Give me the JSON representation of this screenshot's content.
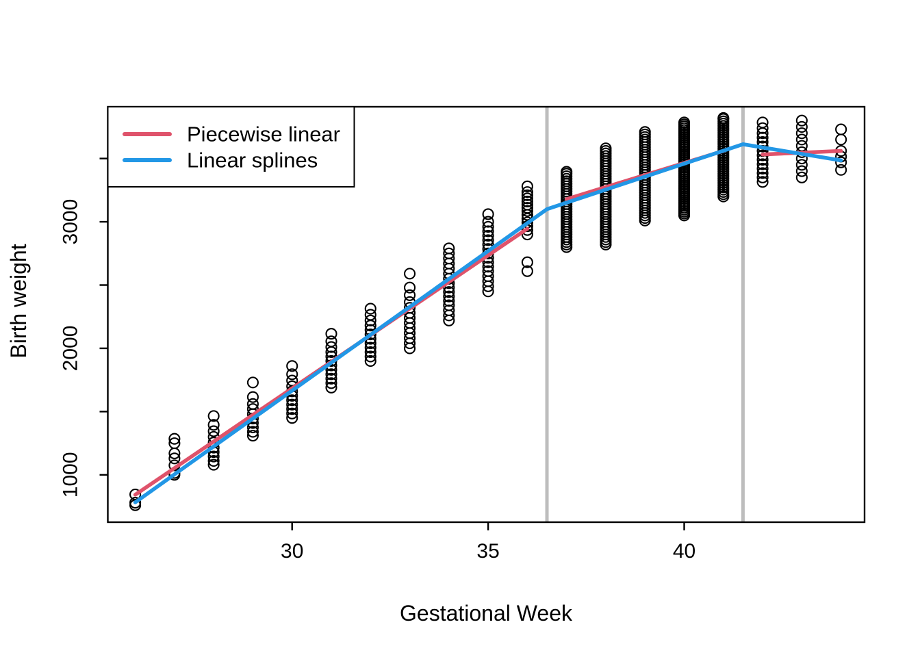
{
  "figure": {
    "background": "#ffffff",
    "border_color": "#000000",
    "text_color": "#000000"
  },
  "legend": {
    "position": "topleft",
    "items": [
      {
        "label": "Piecewise linear",
        "color": "#DF536B"
      },
      {
        "label": "Linear splines",
        "color": "#2297E6"
      }
    ]
  },
  "chart_data": {
    "type": "scatter",
    "title": "",
    "xlabel": "Gestational Week",
    "ylabel": "Birth weight",
    "xlim": [
      25.3,
      44.6
    ],
    "ylim": [
      626,
      3909
    ],
    "x_ticks": [
      30,
      35,
      40
    ],
    "y_ticks_labeled": [
      1000,
      2000,
      3000
    ],
    "y_ticks_minor": [
      1500,
      2500,
      3500
    ],
    "grid": false,
    "knot_lines_x": [
      36.5,
      41.5
    ],
    "knot_line_color": "#BDBDBD",
    "point_color": "#000000",
    "scatter": [
      {
        "week": 26,
        "values": [
          760,
          780,
          845
        ]
      },
      {
        "week": 27,
        "values": [
          1000,
          1015,
          1075,
          1130,
          1170,
          1250,
          1285
        ]
      },
      {
        "week": 28,
        "values": [
          1080,
          1110,
          1145,
          1180,
          1215,
          1255,
          1300,
          1345,
          1395,
          1465
        ]
      },
      {
        "week": 29,
        "values": [
          1310,
          1340,
          1375,
          1410,
          1445,
          1480,
          1520,
          1560,
          1615,
          1730
        ]
      },
      {
        "week": 30,
        "values": [
          1450,
          1485,
          1520,
          1555,
          1590,
          1625,
          1660,
          1700,
          1745,
          1795,
          1860
        ]
      },
      {
        "week": 31,
        "values": [
          1690,
          1725,
          1760,
          1795,
          1830,
          1865,
          1900,
          1935,
          1970,
          2010,
          2055,
          2115
        ]
      },
      {
        "week": 32,
        "values": [
          1900,
          1935,
          1970,
          2005,
          2040,
          2075,
          2110,
          2145,
          2180,
          2220,
          2265,
          2313
        ]
      },
      {
        "week": 33,
        "values": [
          2000,
          2040,
          2080,
          2120,
          2160,
          2200,
          2240,
          2280,
          2320,
          2365,
          2420,
          2480,
          2590
        ]
      },
      {
        "week": 34,
        "values": [
          2220,
          2260,
          2300,
          2340,
          2375,
          2410,
          2445,
          2480,
          2515,
          2550,
          2590,
          2630,
          2670,
          2710,
          2750,
          2790
        ]
      },
      {
        "week": 35,
        "values": [
          2450,
          2490,
          2530,
          2570,
          2610,
          2645,
          2680,
          2715,
          2750,
          2785,
          2820,
          2855,
          2890,
          2925,
          2960,
          3000,
          3060
        ]
      },
      {
        "week": 36,
        "values": [
          2610,
          2680,
          2900,
          2935,
          2965,
          2995,
          3025,
          3055,
          3085,
          3110,
          3135,
          3160,
          3185,
          3210,
          3235,
          3280
        ]
      },
      {
        "week": 37,
        "values": [
          2800,
          2820,
          2840,
          2860,
          2880,
          2900,
          2920,
          2940,
          2960,
          2980,
          3000,
          3020,
          3040,
          3060,
          3080,
          3100,
          3120,
          3140,
          3160,
          3180,
          3200,
          3220,
          3240,
          3260,
          3280,
          3300,
          3320,
          3340,
          3360,
          3380,
          3395
        ]
      },
      {
        "week": 38,
        "values": [
          2820,
          2840,
          2860,
          2880,
          2900,
          2920,
          2940,
          2960,
          2980,
          3000,
          3020,
          3040,
          3060,
          3080,
          3100,
          3120,
          3140,
          3160,
          3180,
          3200,
          3220,
          3240,
          3260,
          3280,
          3300,
          3320,
          3340,
          3360,
          3380,
          3400,
          3420,
          3440,
          3460,
          3480,
          3500,
          3520,
          3540,
          3560,
          3580
        ]
      },
      {
        "week": 39,
        "values": [
          3010,
          3030,
          3050,
          3070,
          3090,
          3110,
          3130,
          3150,
          3170,
          3190,
          3210,
          3230,
          3250,
          3270,
          3290,
          3310,
          3330,
          3350,
          3370,
          3390,
          3410,
          3430,
          3450,
          3470,
          3490,
          3510,
          3530,
          3550,
          3570,
          3590,
          3610,
          3630,
          3650,
          3670,
          3690,
          3710
        ]
      },
      {
        "week": 40,
        "values": [
          3050,
          3065,
          3080,
          3095,
          3110,
          3125,
          3140,
          3155,
          3170,
          3185,
          3200,
          3215,
          3230,
          3245,
          3260,
          3275,
          3290,
          3305,
          3320,
          3335,
          3350,
          3365,
          3380,
          3395,
          3410,
          3425,
          3440,
          3455,
          3470,
          3485,
          3500,
          3515,
          3530,
          3545,
          3560,
          3575,
          3590,
          3605,
          3620,
          3635,
          3650,
          3665,
          3680,
          3695,
          3710,
          3725,
          3740,
          3755,
          3770,
          3785
        ]
      },
      {
        "week": 41,
        "values": [
          3200,
          3218,
          3236,
          3254,
          3272,
          3290,
          3308,
          3326,
          3344,
          3362,
          3380,
          3398,
          3416,
          3434,
          3452,
          3470,
          3488,
          3506,
          3524,
          3542,
          3560,
          3578,
          3596,
          3614,
          3632,
          3650,
          3668,
          3686,
          3704,
          3722,
          3740,
          3758,
          3776,
          3794,
          3812,
          3820
        ]
      },
      {
        "week": 42,
        "values": [
          3315,
          3350,
          3385,
          3420,
          3455,
          3490,
          3525,
          3560,
          3595,
          3630,
          3665,
          3700,
          3740,
          3785
        ]
      },
      {
        "week": 43,
        "values": [
          3350,
          3400,
          3450,
          3500,
          3550,
          3600,
          3650,
          3700,
          3750,
          3800
        ]
      },
      {
        "week": 44,
        "values": [
          3410,
          3470,
          3515,
          3560,
          3650,
          3730
        ]
      }
    ],
    "series": [
      {
        "name": "Piecewise linear",
        "type": "segments",
        "color": "#DF536B",
        "segments": [
          {
            "x": [
              26,
              36
            ],
            "y": [
              843,
              2945
            ]
          },
          {
            "x": [
              37,
              41
            ],
            "y": [
              3179,
              3560
            ]
          },
          {
            "x": [
              42,
              44
            ],
            "y": [
              3532,
              3560
            ]
          }
        ]
      },
      {
        "name": "Linear splines",
        "type": "polyline",
        "color": "#2297E6",
        "x": [
          26,
          36.5,
          41.5,
          44
        ],
        "y": [
          783,
          3100,
          3613,
          3485
        ]
      }
    ]
  }
}
